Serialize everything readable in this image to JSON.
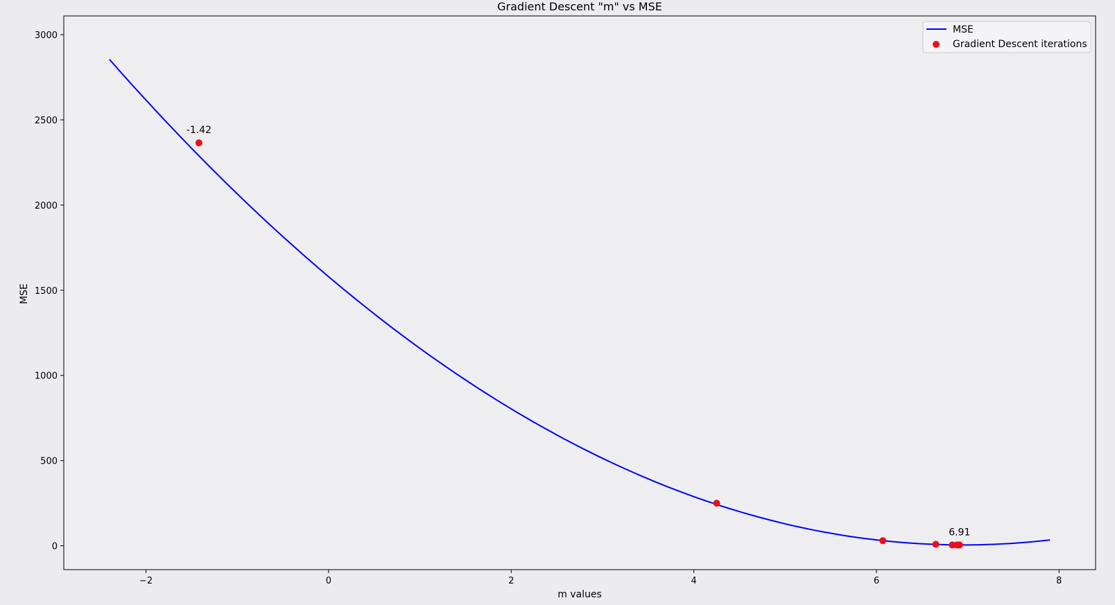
{
  "chart_data": {
    "type": "line",
    "title": "Gradient Descent \"m\" vs MSE",
    "xlabel": "m values",
    "ylabel": "MSE",
    "xlim": [
      -2.9,
      8.4
    ],
    "ylim": [
      -140,
      3110
    ],
    "xticks": [
      -2,
      0,
      2,
      4,
      6,
      8
    ],
    "xtick_labels": [
      "−2",
      "0",
      "2",
      "4",
      "6",
      "8"
    ],
    "yticks": [
      0,
      500,
      1000,
      1500,
      2000,
      2500,
      3000
    ],
    "ytick_labels": [
      "0",
      "500",
      "1000",
      "1500",
      "2000",
      "2500",
      "3000"
    ],
    "grid": false,
    "legend_position": "top-right",
    "series": [
      {
        "name": "MSE",
        "kind": "line",
        "color": "#0000ff",
        "curve": {
          "x_start": -2.4,
          "x_end": 7.9,
          "samples": 120,
          "form": "quadratic",
          "a": 32.6,
          "vertex_x": 6.95,
          "vertex_y": 5
        }
      },
      {
        "name": "Gradient Descent iterations",
        "kind": "scatter",
        "color": "#e8101a",
        "x": [
          -1.42,
          4.25,
          6.07,
          6.65,
          6.83,
          6.88,
          6.9,
          6.91
        ],
        "y": [
          2365,
          250,
          30,
          9,
          5,
          5,
          5,
          5
        ]
      }
    ],
    "annotations": [
      {
        "text": "-1.42",
        "x": -1.42,
        "y": 2365
      },
      {
        "text": "6.91",
        "x": 6.91,
        "y": 5
      }
    ]
  }
}
